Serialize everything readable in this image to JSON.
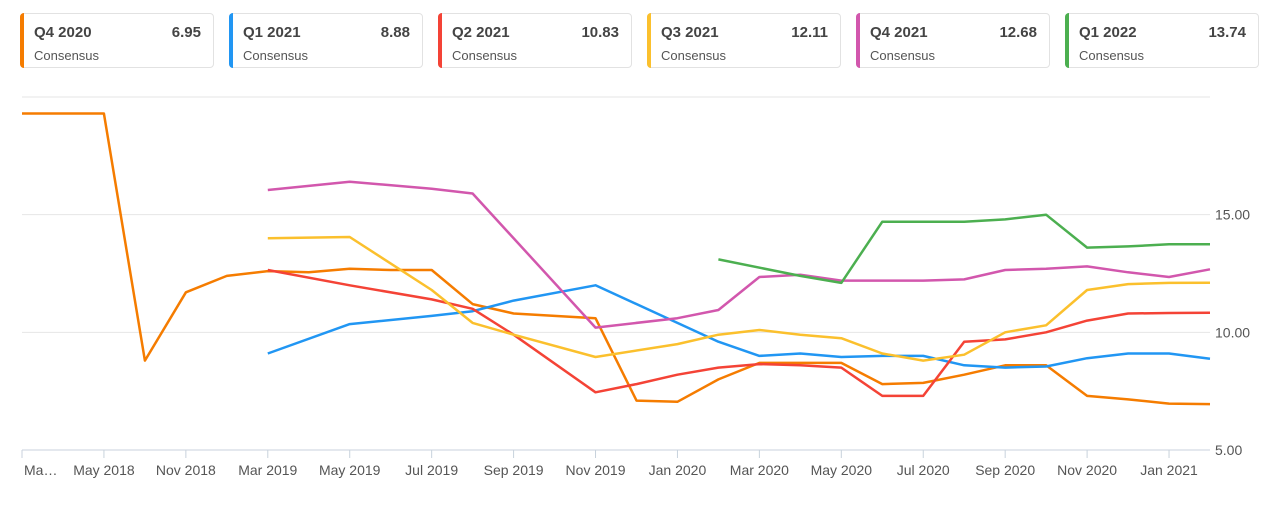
{
  "cards": [
    {
      "quarter": "Q4 2020",
      "value": "6.95",
      "label": "Consensus",
      "color": "#f57c00"
    },
    {
      "quarter": "Q1 2021",
      "value": "8.88",
      "label": "Consensus",
      "color": "#2196f3"
    },
    {
      "quarter": "Q2 2021",
      "value": "10.83",
      "label": "Consensus",
      "color": "#f44336"
    },
    {
      "quarter": "Q3 2021",
      "value": "12.11",
      "label": "Consensus",
      "color": "#fbc02d"
    },
    {
      "quarter": "Q4 2021",
      "value": "12.68",
      "label": "Consensus",
      "color": "#d257ad"
    },
    {
      "quarter": "Q1 2022",
      "value": "13.74",
      "label": "Consensus",
      "color": "#4caf50"
    }
  ],
  "chart_data": {
    "type": "line",
    "x_labels": [
      "Ma…",
      "May 2018",
      "Nov 2018",
      "Mar 2019",
      "May 2019",
      "Jul 2019",
      "Sep 2019",
      "Nov 2019",
      "Jan 2020",
      "Mar 2020",
      "May 2020",
      "Jul 2020",
      "Sep 2020",
      "Nov 2020",
      "Jan 2021"
    ],
    "y_ticks": [
      "5.00",
      "10.00",
      "15.00"
    ],
    "ylim": [
      5,
      20
    ],
    "x_range": [
      0,
      29
    ],
    "grid": true,
    "series": [
      {
        "color": "#f57c00",
        "points": [
          [
            0,
            19.3
          ],
          [
            2,
            19.3
          ],
          [
            3,
            8.8
          ],
          [
            4,
            11.7
          ],
          [
            5,
            12.4
          ],
          [
            6,
            12.6
          ],
          [
            7,
            12.55
          ],
          [
            8,
            12.7
          ],
          [
            9,
            12.65
          ],
          [
            10,
            12.65
          ],
          [
            11,
            11.2
          ],
          [
            12,
            10.8
          ],
          [
            13,
            10.7
          ],
          [
            14,
            10.6
          ],
          [
            15,
            7.1
          ],
          [
            16,
            7.05
          ],
          [
            17,
            8.0
          ],
          [
            18,
            8.7
          ],
          [
            19,
            8.7
          ],
          [
            20,
            8.7
          ],
          [
            21,
            7.8
          ],
          [
            22,
            7.85
          ],
          [
            23,
            8.2
          ],
          [
            24,
            8.6
          ],
          [
            25,
            8.6
          ],
          [
            26,
            7.3
          ],
          [
            27,
            7.15
          ],
          [
            28,
            6.97
          ],
          [
            29,
            6.95
          ]
        ]
      },
      {
        "color": "#2196f3",
        "points": [
          [
            6,
            9.1
          ],
          [
            8,
            10.35
          ],
          [
            10,
            10.7
          ],
          [
            11,
            10.9
          ],
          [
            12,
            11.35
          ],
          [
            14,
            12.0
          ],
          [
            16,
            10.4
          ],
          [
            17,
            9.6
          ],
          [
            18,
            9.0
          ],
          [
            19,
            9.1
          ],
          [
            20,
            8.95
          ],
          [
            21,
            9.0
          ],
          [
            22,
            9.0
          ],
          [
            23,
            8.6
          ],
          [
            24,
            8.5
          ],
          [
            25,
            8.55
          ],
          [
            26,
            8.9
          ],
          [
            27,
            9.1
          ],
          [
            28,
            9.1
          ],
          [
            29,
            8.88
          ]
        ]
      },
      {
        "color": "#f44336",
        "points": [
          [
            6,
            12.65
          ],
          [
            8,
            12.0
          ],
          [
            10,
            11.4
          ],
          [
            11,
            11.0
          ],
          [
            12,
            9.9
          ],
          [
            14,
            7.45
          ],
          [
            15,
            7.8
          ],
          [
            16,
            8.2
          ],
          [
            17,
            8.5
          ],
          [
            18,
            8.65
          ],
          [
            19,
            8.6
          ],
          [
            20,
            8.5
          ],
          [
            21,
            7.3
          ],
          [
            22,
            7.3
          ],
          [
            23,
            9.6
          ],
          [
            24,
            9.7
          ],
          [
            25,
            10.0
          ],
          [
            26,
            10.5
          ],
          [
            27,
            10.8
          ],
          [
            28,
            10.82
          ],
          [
            29,
            10.83
          ]
        ]
      },
      {
        "color": "#fbc02d",
        "points": [
          [
            6,
            14.0
          ],
          [
            8,
            14.05
          ],
          [
            10,
            11.8
          ],
          [
            11,
            10.4
          ],
          [
            12,
            9.9
          ],
          [
            14,
            8.95
          ],
          [
            16,
            9.5
          ],
          [
            17,
            9.9
          ],
          [
            18,
            10.1
          ],
          [
            19,
            9.9
          ],
          [
            20,
            9.75
          ],
          [
            21,
            9.1
          ],
          [
            22,
            8.8
          ],
          [
            23,
            9.05
          ],
          [
            24,
            10.0
          ],
          [
            25,
            10.3
          ],
          [
            26,
            11.8
          ],
          [
            27,
            12.05
          ],
          [
            28,
            12.1
          ],
          [
            29,
            12.11
          ]
        ]
      },
      {
        "color": "#d257ad",
        "points": [
          [
            6,
            16.05
          ],
          [
            8,
            16.4
          ],
          [
            10,
            16.1
          ],
          [
            11,
            15.9
          ],
          [
            14,
            10.2
          ],
          [
            16,
            10.6
          ],
          [
            17,
            10.95
          ],
          [
            18,
            12.35
          ],
          [
            19,
            12.45
          ],
          [
            20,
            12.2
          ],
          [
            21,
            12.2
          ],
          [
            22,
            12.2
          ],
          [
            23,
            12.25
          ],
          [
            24,
            12.65
          ],
          [
            25,
            12.7
          ],
          [
            26,
            12.8
          ],
          [
            27,
            12.55
          ],
          [
            28,
            12.35
          ],
          [
            29,
            12.68
          ]
        ]
      },
      {
        "color": "#4caf50",
        "points": [
          [
            17,
            13.1
          ],
          [
            19,
            12.4
          ],
          [
            20,
            12.1
          ],
          [
            21,
            14.7
          ],
          [
            22,
            14.7
          ],
          [
            23,
            14.7
          ],
          [
            24,
            14.8
          ],
          [
            25,
            15.0
          ],
          [
            26,
            13.6
          ],
          [
            27,
            13.65
          ],
          [
            28,
            13.74
          ],
          [
            29,
            13.74
          ]
        ]
      }
    ]
  }
}
